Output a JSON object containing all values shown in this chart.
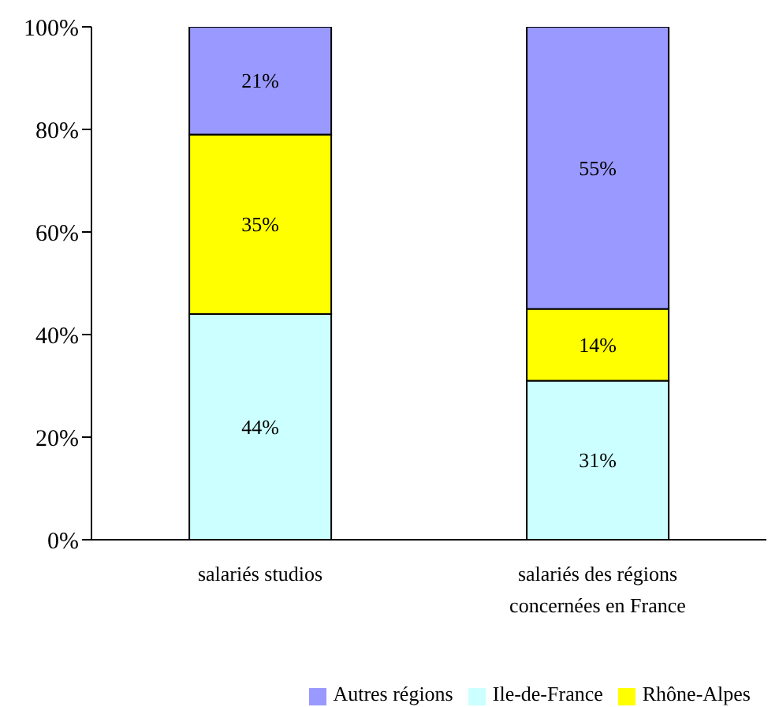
{
  "chart_data": {
    "type": "bar",
    "stacked": true,
    "categories": [
      "salariés studios",
      "salariés des régions concernées en France"
    ],
    "series": [
      {
        "name": "Ile-de-France",
        "color": "#ccffff",
        "values": [
          44,
          31
        ],
        "value_labels": [
          "44%",
          "31%"
        ]
      },
      {
        "name": "Rhône-Alpes",
        "color": "#ffff00",
        "values": [
          35,
          14
        ],
        "value_labels": [
          "35%",
          "14%"
        ]
      },
      {
        "name": "Autres régions",
        "color": "#9999ff",
        "values": [
          21,
          55
        ],
        "value_labels": [
          "21%",
          "55%"
        ]
      }
    ],
    "ylim": [
      0,
      100
    ],
    "yticks": [
      {
        "value": 0,
        "label": "0%"
      },
      {
        "value": 20,
        "label": "20%"
      },
      {
        "value": 40,
        "label": "40%"
      },
      {
        "value": 60,
        "label": "60%"
      },
      {
        "value": 80,
        "label": "80%"
      },
      {
        "value": 100,
        "label": "100%"
      }
    ],
    "grid": false,
    "legend": "bottom right"
  }
}
